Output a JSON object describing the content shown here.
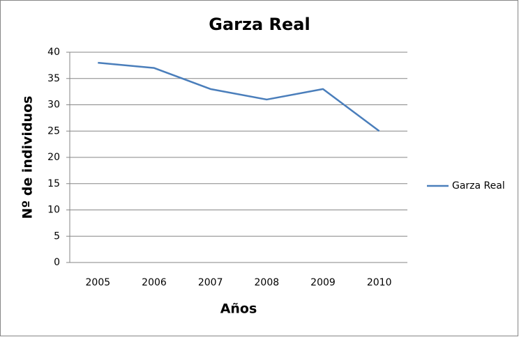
{
  "chart_data": {
    "type": "line",
    "title": "Garza Real",
    "x_label": "Años",
    "y_label": "Nº de individuos",
    "categories": [
      "2005",
      "2006",
      "2007",
      "2008",
      "2009",
      "2010"
    ],
    "series": [
      {
        "name": "Garza Real",
        "color": "#4a7ebb",
        "values": [
          38,
          37,
          33,
          31,
          33,
          25
        ]
      }
    ],
    "ylim": [
      0,
      40
    ],
    "yticks": [
      0,
      5,
      10,
      15,
      20,
      25,
      30,
      35,
      40
    ],
    "grid": true,
    "legend": "right"
  }
}
